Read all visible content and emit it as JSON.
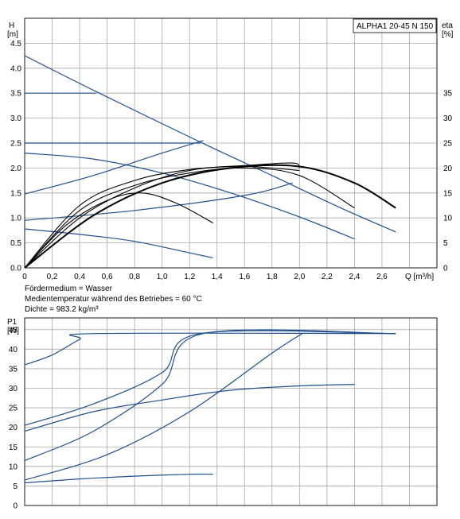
{
  "model_label": "ALPHA1 20-45 N 150",
  "notes": {
    "medium": "Fördermedium = Wasser",
    "temp": "Medientemperatur während des Betriebes = 60 °C",
    "density": "Dichte = 983.2 kg/m³"
  },
  "chart_data": [
    {
      "type": "line",
      "title": "",
      "xlabel": "Q [m³/h]",
      "ylabel_top": "H",
      "ylabel_unit": "[m]",
      "y2label_top": "eta",
      "y2label_unit": "[%]",
      "xlim": [
        0,
        3.0
      ],
      "ylim": [
        0,
        5
      ],
      "y2lim": [
        0,
        50
      ],
      "x_ticks": [
        "0",
        "0,2",
        "0,4",
        "0,6",
        "0,8",
        "1,0",
        "1,2",
        "1,4",
        "1,6",
        "1,8",
        "2,0",
        "2,2",
        "2,4",
        "2,6"
      ],
      "y_ticks": [
        "0.0",
        "0.5",
        "1.0",
        "1.5",
        "2.0",
        "2.5",
        "3.0",
        "3.5",
        "4.0",
        "4.5"
      ],
      "y2_ticks": [
        "0",
        "5",
        "10",
        "15",
        "20",
        "25",
        "30",
        "35"
      ],
      "series": [
        {
          "color": "#1f4f8c",
          "kind": "head",
          "x": [
            0,
            0.55,
            1.3,
            1.8,
            2.3,
            2.7
          ],
          "y": [
            4.25,
            3.49,
            2.49,
            1.85,
            1.2,
            0.72
          ]
        },
        {
          "color": "#1f4f8c",
          "kind": "head",
          "x": [
            0,
            0.52
          ],
          "y": [
            3.5,
            3.5
          ]
        },
        {
          "color": "#1f4f8c",
          "kind": "head",
          "x": [
            0,
            1.28
          ],
          "y": [
            2.5,
            2.5
          ]
        },
        {
          "color": "#1f4f8c",
          "kind": "head",
          "x": [
            0,
            0.5,
            1.0,
            1.5,
            2.0,
            2.4
          ],
          "y": [
            2.3,
            2.18,
            1.9,
            1.5,
            1.02,
            0.58
          ]
        },
        {
          "color": "#1f4f8c",
          "kind": "head",
          "x": [
            0,
            0.4,
            0.8,
            1.2,
            1.37
          ],
          "y": [
            0.78,
            0.67,
            0.53,
            0.3,
            0.2
          ]
        },
        {
          "color": "#1f4f8c",
          "kind": "head",
          "x": [
            0,
            0.5,
            1.0,
            1.3
          ],
          "y": [
            1.48,
            1.85,
            2.3,
            2.55
          ]
        },
        {
          "color": "#1f4f8c",
          "kind": "head",
          "x": [
            0,
            0.8,
            1.6,
            1.95
          ],
          "y": [
            0.95,
            1.15,
            1.45,
            1.7
          ]
        },
        {
          "color": "#000000",
          "kind": "eta",
          "x": [
            0,
            0.3,
            0.6,
            0.85,
            1.1,
            1.37
          ],
          "y": [
            0,
            8.5,
            13.5,
            15,
            13,
            9
          ]
        },
        {
          "color": "#000000",
          "kind": "eta",
          "x": [
            0,
            0.4,
            0.8,
            1.2,
            1.6,
            2.0,
            2.4
          ],
          "y": [
            0,
            11.5,
            16.5,
            19,
            20,
            18.5,
            12
          ]
        },
        {
          "color": "#000000",
          "kind": "eta",
          "x": [
            0,
            0.4,
            0.8,
            1.2,
            1.6,
            1.95,
            2.0
          ],
          "y": [
            0,
            12.5,
            17.5,
            19.7,
            20.5,
            21,
            20
          ]
        },
        {
          "color": "#000000",
          "kind": "eta",
          "x": [
            0,
            0.4,
            0.8,
            1.2,
            1.6,
            2.0
          ],
          "y": [
            0,
            10,
            16,
            19.5,
            20.3,
            19.5
          ]
        },
        {
          "color": "#000000",
          "kind": "eta",
          "x": [
            0,
            0.5,
            1.0,
            1.5,
            2.0,
            2.4,
            2.7
          ],
          "y": [
            0,
            10.5,
            17,
            20,
            20.3,
            17,
            12
          ]
        }
      ]
    },
    {
      "type": "line",
      "title": "",
      "xlabel": "",
      "ylabel_top": "P1",
      "ylabel_unit": "[W]",
      "xlim": [
        0,
        3.0
      ],
      "ylim": [
        0,
        48
      ],
      "y_ticks": [
        "0",
        "5",
        "10",
        "15",
        "20",
        "25",
        "30",
        "35",
        "40",
        "45"
      ],
      "series": [
        {
          "color": "#1f4f8c",
          "x": [
            0,
            0.2,
            0.4,
            0.52,
            2.7
          ],
          "y": [
            36,
            38.5,
            42.5,
            44,
            44
          ]
        },
        {
          "color": "#1f4f8c",
          "x": [
            0,
            0.5,
            1.0,
            1.28,
            2.7
          ],
          "y": [
            20.5,
            26,
            34,
            44,
            44
          ]
        },
        {
          "color": "#1f4f8c",
          "x": [
            0,
            0.5,
            1.0,
            1.3,
            2.7
          ],
          "y": [
            11.5,
            19,
            31,
            44,
            44
          ]
        },
        {
          "color": "#1f4f8c",
          "x": [
            0,
            0.5,
            1.0,
            1.5,
            2.0,
            2.4
          ],
          "y": [
            19,
            24,
            27,
            29.5,
            30.6,
            31
          ]
        },
        {
          "color": "#1f4f8c",
          "x": [
            0,
            0.6,
            1.2,
            1.8,
            2.02
          ],
          "y": [
            6.5,
            13,
            24,
            39,
            44
          ]
        },
        {
          "color": "#1f4f8c",
          "x": [
            0,
            0.4,
            0.8,
            1.2,
            1.37
          ],
          "y": [
            5.8,
            6.8,
            7.5,
            8,
            8
          ]
        }
      ]
    }
  ]
}
